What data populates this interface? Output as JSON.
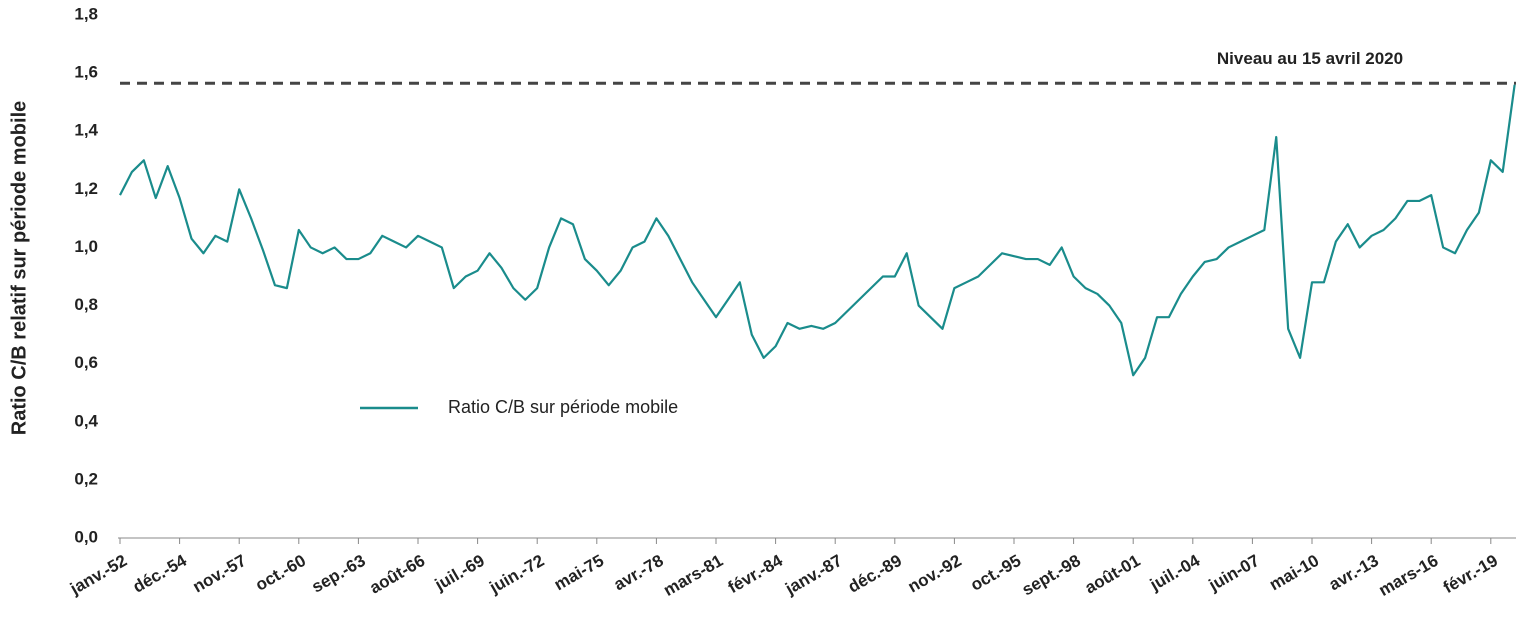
{
  "chart_data": {
    "type": "line",
    "y_label": "Ratio C/B relatif sur période mobile",
    "categories": [
      "janv.-52",
      null,
      null,
      null,
      null,
      "déc.-54",
      null,
      null,
      null,
      null,
      "nov.-57",
      null,
      null,
      null,
      null,
      "oct.-60",
      null,
      null,
      null,
      null,
      "sep.-63",
      null,
      null,
      null,
      null,
      "août-66",
      null,
      null,
      null,
      null,
      "juil.-69",
      null,
      null,
      null,
      null,
      "juin.-72",
      null,
      null,
      null,
      null,
      "mai-75",
      null,
      null,
      null,
      null,
      "avr.-78",
      null,
      null,
      null,
      null,
      "mars-81",
      null,
      null,
      null,
      null,
      "févr.-84",
      null,
      null,
      null,
      null,
      "janv.-87",
      null,
      null,
      null,
      null,
      "déc.-89",
      null,
      null,
      null,
      null,
      "nov.-92",
      null,
      null,
      null,
      null,
      "oct.-95",
      null,
      null,
      null,
      null,
      "sept.-98",
      null,
      null,
      null,
      null,
      "août-01",
      null,
      null,
      null,
      null,
      "juil.-04",
      null,
      null,
      null,
      null,
      "juin-07",
      null,
      null,
      null,
      null,
      "mai-10",
      null,
      null,
      null,
      null,
      "avr.-13",
      null,
      null,
      null,
      null,
      "mars-16",
      null,
      null,
      null,
      null,
      "févr.-19",
      null,
      null
    ],
    "series": [
      {
        "name": "Ratio C/B sur période mobile",
        "color": "#1a8c8c",
        "values": [
          1.18,
          1.26,
          1.3,
          1.17,
          1.28,
          1.17,
          1.03,
          0.98,
          1.04,
          1.02,
          1.2,
          1.1,
          0.99,
          0.87,
          0.86,
          1.06,
          1.0,
          0.98,
          1.0,
          0.96,
          0.96,
          0.98,
          1.04,
          1.02,
          1.0,
          1.04,
          1.02,
          1.0,
          0.86,
          0.9,
          0.92,
          0.98,
          0.93,
          0.86,
          0.82,
          0.86,
          1.0,
          1.1,
          1.08,
          0.96,
          0.92,
          0.87,
          0.92,
          1.0,
          1.02,
          1.1,
          1.04,
          0.96,
          0.88,
          0.82,
          0.76,
          0.82,
          0.88,
          0.7,
          0.62,
          0.66,
          0.74,
          0.72,
          0.73,
          0.72,
          0.74,
          0.78,
          0.82,
          0.86,
          0.9,
          0.9,
          0.98,
          0.8,
          0.76,
          0.72,
          0.86,
          0.88,
          0.9,
          0.94,
          0.98,
          0.97,
          0.96,
          0.96,
          0.94,
          1.0,
          0.9,
          0.86,
          0.84,
          0.8,
          0.74,
          0.56,
          0.62,
          0.76,
          0.76,
          0.84,
          0.9,
          0.95,
          0.96,
          1.0,
          1.02,
          1.04,
          1.06,
          1.38,
          0.72,
          0.62,
          0.88,
          0.88,
          1.02,
          1.08,
          1.0,
          1.04,
          1.06,
          1.1,
          1.16,
          1.16,
          1.18,
          1.0,
          0.98,
          1.06,
          1.12,
          1.3,
          1.26,
          1.56
        ]
      }
    ],
    "reference_line": {
      "value": 1.565,
      "label": "Niveau au 15 avril 2020",
      "color": "#444"
    },
    "ylim": [
      0,
      1.8
    ],
    "yticks": [
      {
        "value": 0,
        "label": "0,0"
      },
      {
        "value": 0.2,
        "label": "0,2"
      },
      {
        "value": 0.4,
        "label": "0,4"
      },
      {
        "value": 0.6,
        "label": "0,6"
      },
      {
        "value": 0.8,
        "label": "0,8"
      },
      {
        "value": 1,
        "label": "1,0"
      },
      {
        "value": 1.2,
        "label": "1,2"
      },
      {
        "value": 1.4,
        "label": "1,4"
      },
      {
        "value": 1.6,
        "label": "1,6"
      },
      {
        "value": 1.8,
        "label": "1,8"
      }
    ],
    "grid": false
  }
}
